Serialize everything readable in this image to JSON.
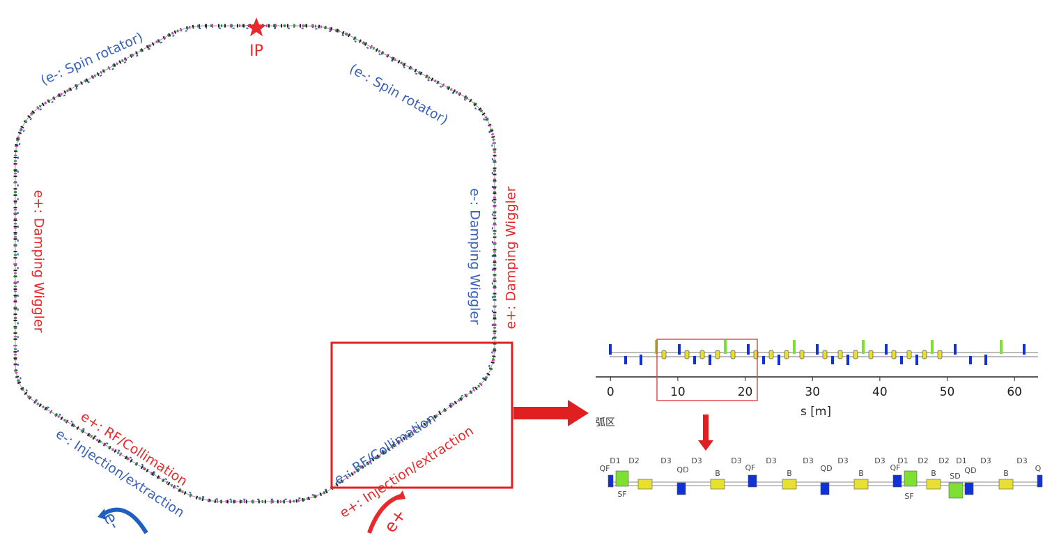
{
  "ring": {
    "ip": "IP",
    "labels": {
      "spin_left": "(e-: Spin rotator)",
      "spin_right": "(e-: Spin rotator)",
      "dw_left": "e+: Damping Wiggler",
      "dw_right_inner": "e-: Damping Wiggler",
      "dw_right_outer": "e+: Damping Wiggler",
      "rf_left": "e+: RF/Collimation",
      "inj_left": "e-: Injection/extraction",
      "rf_right": "e-: RF/Collimation",
      "inj_right": "e+: Injection/extraction",
      "beam_left": "e-",
      "beam_right": "e+"
    }
  },
  "lattice_plot": {
    "xlim": [
      -2.2,
      63.5
    ],
    "xticks": [
      0,
      10,
      20,
      30,
      40,
      50,
      60
    ],
    "xlabel": "s [m]",
    "section": "弧区"
  },
  "cell": {
    "labels": [
      "QF",
      "D1",
      "D2",
      "D3",
      "D3",
      "D3",
      "QF",
      "D3",
      "D3",
      "QD",
      "D3",
      "D3",
      "QF",
      "D1",
      "D2",
      "D2",
      "D1",
      "D3",
      "D3",
      "Q",
      "QD",
      "B",
      "B",
      "B",
      "B",
      "SD",
      "QD",
      "B",
      "SF",
      "SF"
    ]
  }
}
